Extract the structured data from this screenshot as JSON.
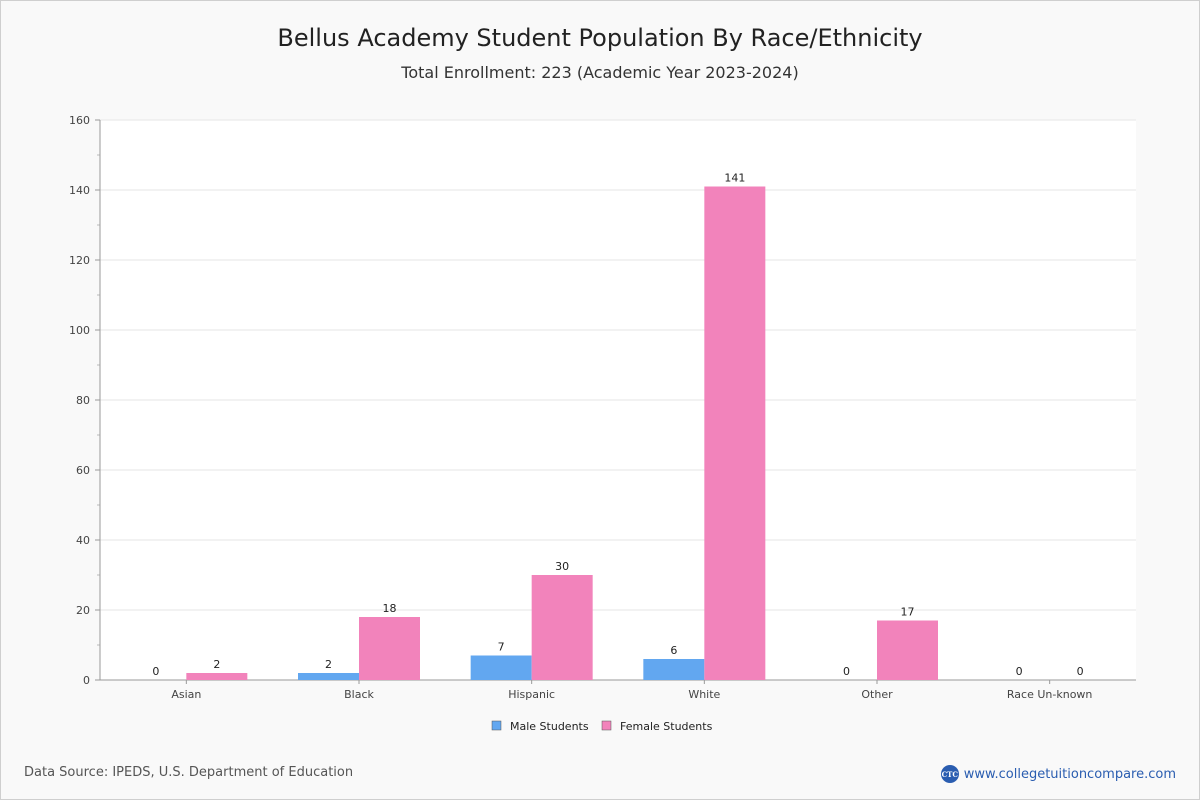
{
  "title": "Bellus Academy Student Population By Race/Ethnicity",
  "subtitle": "Total Enrollment: 223 (Academic Year 2023-2024)",
  "footer": {
    "source": "Data Source: IPEDS, U.S. Department of Education",
    "logo_text": "CTC",
    "site": "www.collegetuitioncompare.com"
  },
  "chart_data": {
    "type": "bar",
    "categories": [
      "Asian",
      "Black",
      "Hispanic",
      "White",
      "Other",
      "Race Un-known"
    ],
    "series": [
      {
        "name": "Male Students",
        "values": [
          0,
          2,
          7,
          6,
          0,
          0
        ],
        "color": "#62a7f0"
      },
      {
        "name": "Female Students",
        "values": [
          2,
          18,
          30,
          141,
          17,
          0
        ],
        "color": "#f283bb"
      }
    ],
    "ylim": [
      0,
      160
    ],
    "yticks": [
      0,
      20,
      40,
      60,
      80,
      100,
      120,
      140,
      160
    ],
    "grid": true,
    "legend": "bottom-center",
    "xlabel": "",
    "ylabel": ""
  }
}
